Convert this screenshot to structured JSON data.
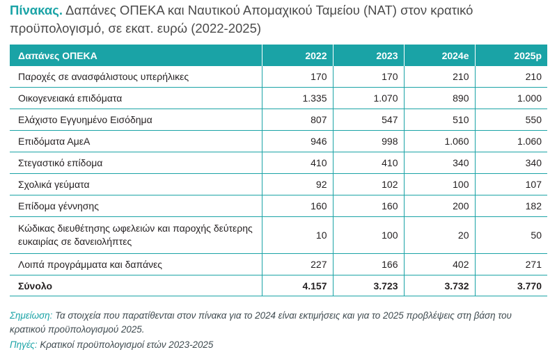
{
  "title": {
    "lead": "Πίνακας.",
    "text": "Δαπάνες ΟΠΕΚΑ και Ναυτικού Απομαχικού Ταμείου (ΝΑΤ) στον κρατικό προϋπολογισμό, σε εκατ. ευρώ (2022-2025)"
  },
  "table": {
    "headers": [
      "Δαπάνες ΟΠΕΚΑ",
      "2022",
      "2023",
      "2024e",
      "2025p"
    ],
    "rows": [
      {
        "label": "Παροχές σε ανασφάλιστους υπερήλικες",
        "values": [
          "170",
          "170",
          "210",
          "210"
        ]
      },
      {
        "label": "Οικογενειακά επιδόματα",
        "values": [
          "1.335",
          "1.070",
          "890",
          "1.000"
        ]
      },
      {
        "label": "Ελάχιστο Εγγυημένο Εισόδημα",
        "values": [
          "807",
          "547",
          "510",
          "550"
        ]
      },
      {
        "label": "Επιδόματα ΑμεΑ",
        "values": [
          "946",
          "998",
          "1.060",
          "1.060"
        ]
      },
      {
        "label": "Στεγαστικό επίδομα",
        "values": [
          "410",
          "410",
          "340",
          "340"
        ]
      },
      {
        "label": "Σχολικά γεύματα",
        "values": [
          "92",
          "102",
          "100",
          "107"
        ]
      },
      {
        "label": "Επίδομα γέννησης",
        "values": [
          "160",
          "160",
          "200",
          "182"
        ]
      },
      {
        "label": "Κώδικας διευθέτησης ωφελειών και παροχής δεύτερης ευκαιρίας σε δανειολήπτες",
        "values": [
          "10",
          "100",
          "20",
          "50"
        ]
      },
      {
        "label": "Λοιπά προγράμματα και δαπάνες",
        "values": [
          "227",
          "166",
          "402",
          "271"
        ]
      }
    ],
    "total": {
      "label": "Σύνολο",
      "values": [
        "4.157",
        "3.723",
        "3.732",
        "3.770"
      ]
    }
  },
  "note": {
    "label": "Σημείωση:",
    "text": "Τα στοιχεία που παρατίθενται στον πίνακα για το 2024 είναι εκτιμήσεις και για το 2025 προβλέψεις στη βάση του κρατικού προϋπολογισμού 2025."
  },
  "source": {
    "label": "Πηγές:",
    "text": "Κρατικοί προϋπολογισμοί ετών 2023-2025"
  },
  "colors": {
    "accent": "#1aa3a6",
    "text": "#231f20"
  }
}
